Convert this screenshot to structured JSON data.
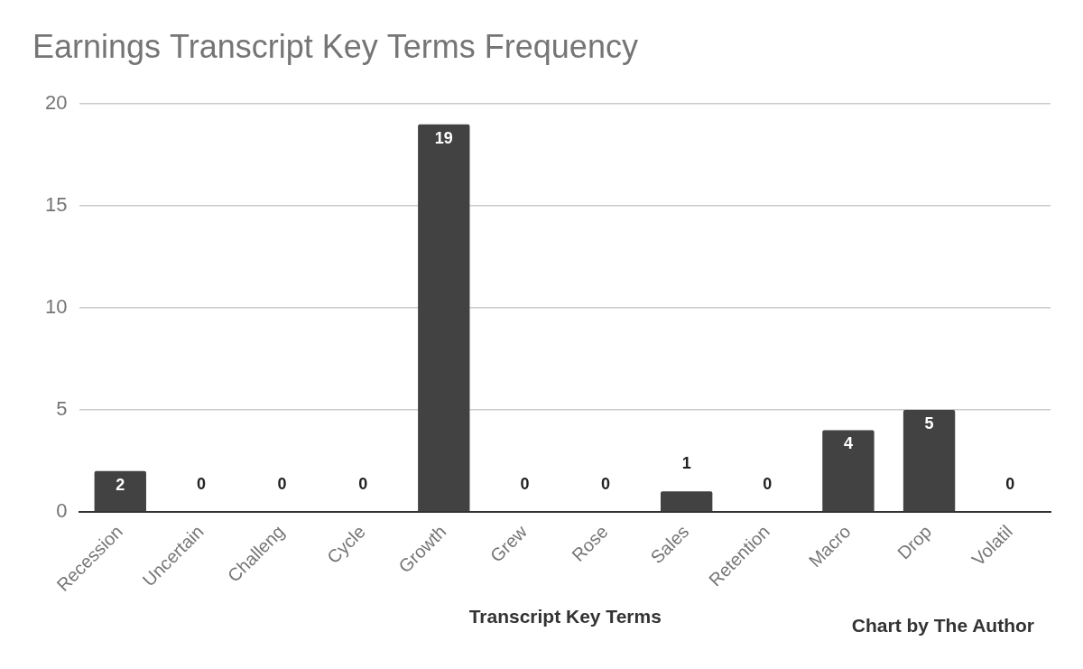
{
  "chart_data": {
    "type": "bar",
    "title": "Earnings Transcript Key Terms Frequency",
    "x_label": "Transcript Key Terms",
    "annotation": "Chart by The Author",
    "categories": [
      "Recession",
      "Uncertain",
      "Challeng",
      "Cycle",
      "Growth",
      "Grew",
      "Rose",
      "Sales",
      "Retention",
      "Macro",
      "Drop",
      "Volatil"
    ],
    "values": [
      2,
      0,
      0,
      0,
      19,
      0,
      0,
      1,
      0,
      4,
      5,
      0
    ],
    "color": "#424242",
    "ylim": [
      0,
      20
    ],
    "yticks": [
      0,
      5,
      10,
      15,
      20
    ],
    "grid": true,
    "data_labels": true
  }
}
